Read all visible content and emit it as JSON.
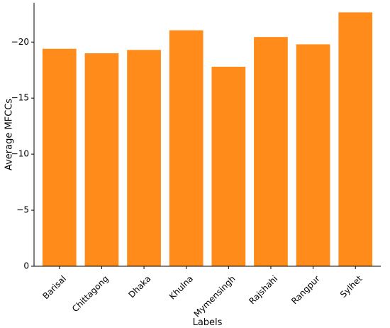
{
  "chart_data": {
    "type": "bar",
    "xlabel": "Labels",
    "ylabel": "Average MFCCs",
    "categories": [
      "Barisal",
      "Chittagong",
      "Dhaka",
      "Khulna",
      "Mymensingh",
      "Rajshahi",
      "Rangpur",
      "Sylhet"
    ],
    "values": [
      -19.4,
      -19.0,
      -19.3,
      -21.05,
      -17.8,
      -20.45,
      -19.8,
      -22.65
    ],
    "ylim": [
      0,
      -23.5
    ],
    "yticks": [
      0,
      -5,
      -10,
      -15,
      -20
    ],
    "ytick_labels": [
      "0",
      "−5",
      "−10",
      "−15",
      "−20"
    ],
    "bar_color": "#ff8c1a",
    "grid": false,
    "legend": "none"
  }
}
